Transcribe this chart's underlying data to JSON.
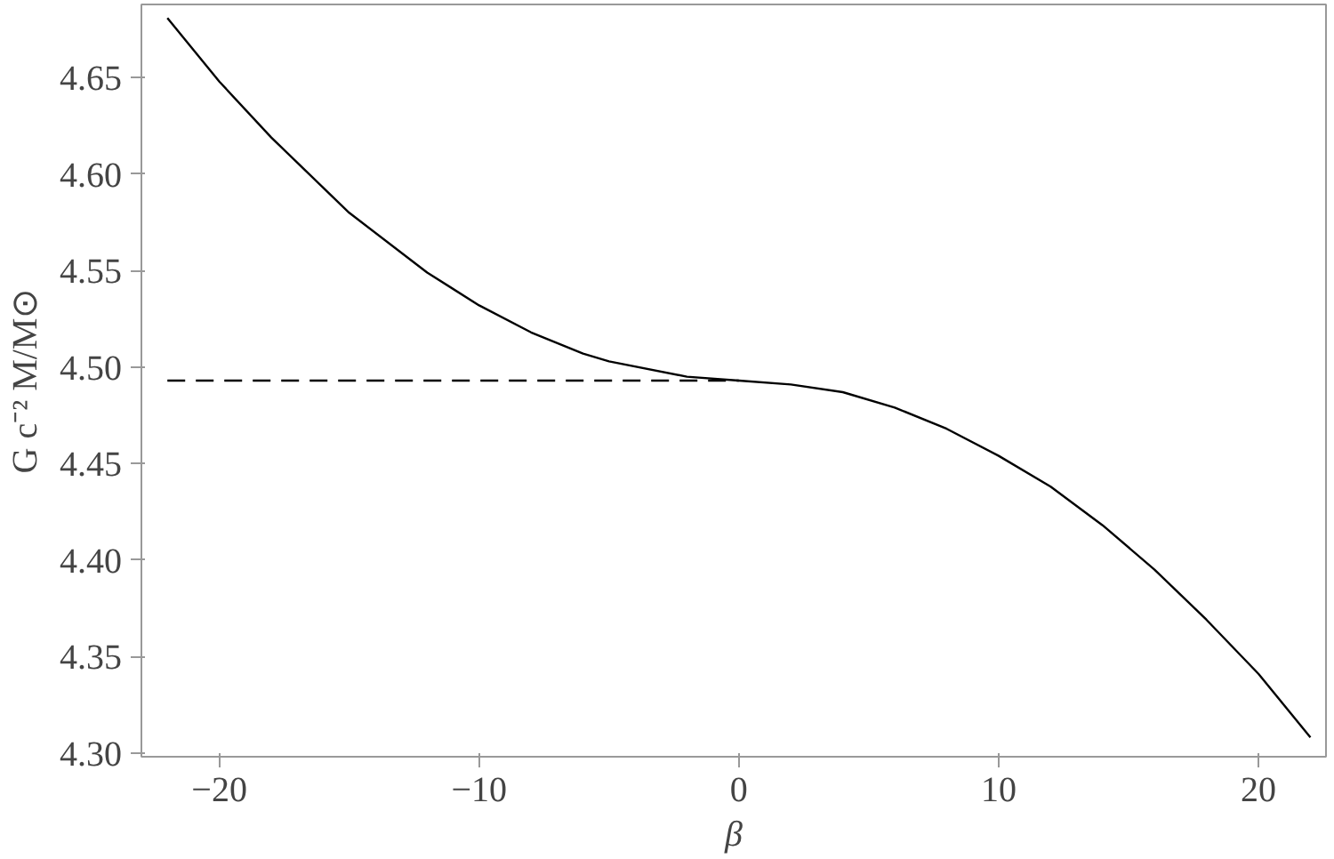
{
  "chart_data": {
    "type": "line",
    "xlabel": "β",
    "ylabel": "G c⁻² M/M⊙",
    "xlim": [
      -23.0,
      22.6
    ],
    "ylim": [
      4.298,
      4.688
    ],
    "xticks": [
      {
        "value": -20,
        "label": "−20"
      },
      {
        "value": -10,
        "label": "−10"
      },
      0,
      10,
      20
    ],
    "yticks": [
      {
        "value": 4.3,
        "label": "4.30"
      },
      4.35,
      {
        "value": 4.4,
        "label": "4.40"
      },
      4.45,
      {
        "value": 4.5,
        "label": "4.50"
      },
      4.55,
      {
        "value": 4.6,
        "label": "4.60"
      },
      4.65
    ],
    "grid": false,
    "series": [
      {
        "color": "#000000",
        "line_style": "solid",
        "x": [
          -22,
          -20,
          -18,
          -15,
          -12,
          -10,
          -8,
          -6,
          -5,
          -2,
          0,
          2,
          4,
          6,
          8,
          10,
          12,
          14,
          16,
          18,
          20,
          22
        ],
        "values": [
          4.681,
          4.648,
          4.619,
          4.58,
          4.549,
          4.532,
          4.518,
          4.507,
          4.503,
          4.495,
          4.493,
          4.491,
          4.487,
          4.479,
          4.468,
          4.454,
          4.438,
          4.418,
          4.395,
          4.369,
          4.341,
          4.308
        ]
      },
      {
        "color": "#000000",
        "line_style": "dashed",
        "x": [
          -22,
          0
        ],
        "values": [
          4.493,
          4.493
        ]
      }
    ]
  }
}
